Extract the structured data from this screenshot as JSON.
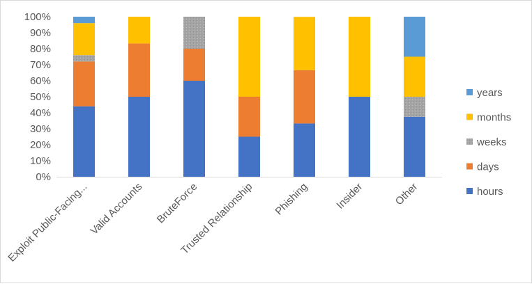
{
  "chart_data": {
    "type": "bar",
    "stacked": true,
    "normalized": true,
    "categories": [
      "Exploit Public-Facing...",
      "Valid Accounts",
      "BruteForce",
      "Trusted Relationship",
      "Phishing",
      "Insider",
      "Other"
    ],
    "series": [
      {
        "name": "hours",
        "color": "#4472c4",
        "values": [
          44,
          50,
          60,
          25,
          33.3,
          50,
          37.5
        ]
      },
      {
        "name": "days",
        "color": "#ed7d31",
        "values": [
          28,
          33.3,
          20,
          25,
          33.3,
          0,
          0
        ]
      },
      {
        "name": "weeks",
        "color": "#a5a5a5",
        "values": [
          4,
          0,
          20,
          0,
          0,
          0,
          12.5
        ]
      },
      {
        "name": "months",
        "color": "#ffc000",
        "values": [
          20,
          16.7,
          0,
          50,
          33.3,
          50,
          25
        ]
      },
      {
        "name": "years",
        "color": "#5b9bd5",
        "values": [
          4,
          0,
          0,
          0,
          0,
          0,
          25
        ]
      }
    ],
    "ylim": [
      0,
      100
    ],
    "y_ticks": [
      "0%",
      "10%",
      "20%",
      "30%",
      "40%",
      "50%",
      "60%",
      "70%",
      "80%",
      "90%",
      "100%"
    ],
    "legend_position": "right",
    "legend_order": [
      "years",
      "months",
      "weeks",
      "days",
      "hours"
    ],
    "grid": false,
    "title": "",
    "xlabel": "",
    "ylabel": ""
  }
}
